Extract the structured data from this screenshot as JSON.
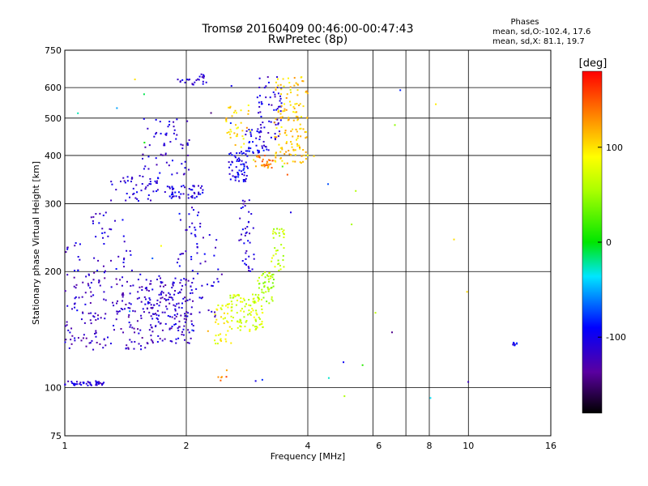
{
  "chart_data": {
    "type": "scatter",
    "title": "Tromsø 20160409 00:46:00-00:47:43",
    "subtitle": "RwPretec (8p)",
    "xlabel": "Frequency [MHz]",
    "ylabel": "Stationary phase Virtual Height [km]",
    "x_scale": "log2",
    "y_scale": "log",
    "xlim": [
      1,
      16
    ],
    "ylim": [
      75,
      750
    ],
    "x_ticks": [
      1,
      2,
      4,
      6,
      8,
      10,
      16
    ],
    "y_ticks": [
      75,
      100,
      200,
      300,
      400,
      500,
      600,
      750
    ],
    "x_grid": [
      2,
      4,
      8,
      10
    ],
    "y_grid": [
      100,
      200,
      300,
      400,
      500,
      600
    ],
    "x_minor_grid": [
      5.8,
      7.0
    ],
    "grid": true,
    "phases_box": {
      "title": "Phases",
      "line_o": "mean, sd,O:-102.4, 17.6",
      "line_x": "mean, sd,X:  81.1, 19.7"
    },
    "colorbar": {
      "label": "[deg]",
      "range": [
        -180,
        180
      ],
      "ticks": [
        100,
        0,
        -100
      ],
      "colormap": "rainbow (black-purple-blue-cyan-green-yellow-orange-red)"
    },
    "series": [
      {
        "clusters": [
          {
            "x": [
              1.0,
              1.25
            ],
            "y": [
              101,
              104
            ],
            "phase": -110,
            "n": 45
          },
          {
            "x": [
              1.0,
              1.6
            ],
            "y": [
              125,
              200
            ],
            "phase": -120,
            "n": 180
          },
          {
            "x": [
              1.6,
              2.1
            ],
            "y": [
              130,
              195
            ],
            "phase": -115,
            "n": 180
          },
          {
            "x": [
              1.0,
              1.5
            ],
            "y": [
              200,
              240
            ],
            "phase": -110,
            "n": 30
          },
          {
            "x": [
              1.15,
              1.4
            ],
            "y": [
              240,
              285
            ],
            "phase": -110,
            "n": 20
          },
          {
            "x": [
              1.3,
              1.8
            ],
            "y": [
              305,
              355
            ],
            "phase": -110,
            "n": 50
          },
          {
            "x": [
              1.8,
              2.2
            ],
            "y": [
              310,
              335
            ],
            "phase": -105,
            "n": 50
          },
          {
            "x": [
              1.55,
              2.05
            ],
            "y": [
              355,
              500
            ],
            "phase": -110,
            "n": 60
          },
          {
            "x": [
              1.9,
              2.25
            ],
            "y": [
              610,
              650
            ],
            "phase": -110,
            "n": 25
          },
          {
            "x": [
              1.9,
              2.2
            ],
            "y": [
              200,
              300
            ],
            "phase": -105,
            "n": 30
          },
          {
            "x": [
              2.1,
              2.45
            ],
            "y": [
              150,
              250
            ],
            "phase": -110,
            "n": 30
          },
          {
            "x": [
              2.35,
              2.6
            ],
            "y": [
              130,
              165
            ],
            "phase": 85,
            "n": 40
          },
          {
            "x": [
              2.55,
              3.1
            ],
            "y": [
              140,
              175
            ],
            "phase": 70,
            "n": 100
          },
          {
            "x": [
              3.0,
              3.3
            ],
            "y": [
              165,
              200
            ],
            "phase": 55,
            "n": 45
          },
          {
            "x": [
              3.25,
              3.5
            ],
            "y": [
              200,
              260
            ],
            "phase": 65,
            "n": 35
          },
          {
            "x": [
              2.7,
              2.95
            ],
            "y": [
              200,
              310
            ],
            "phase": -110,
            "n": 40
          },
          {
            "x": [
              2.55,
              2.85
            ],
            "y": [
              340,
              410
            ],
            "phase": -100,
            "n": 60
          },
          {
            "x": [
              2.8,
              3.2
            ],
            "y": [
              400,
              470
            ],
            "phase": -100,
            "n": 40
          },
          {
            "x": [
              2.5,
              2.9
            ],
            "y": [
              420,
              540
            ],
            "phase": 100,
            "n": 35
          },
          {
            "x": [
              3.0,
              3.45
            ],
            "y": [
              440,
              640
            ],
            "phase": -110,
            "n": 60
          },
          {
            "x": [
              2.95,
              3.3
            ],
            "y": [
              370,
              400
            ],
            "phase": 135,
            "n": 30
          },
          {
            "x": [
              3.3,
              4.0
            ],
            "y": [
              380,
              640
            ],
            "phase": 110,
            "n": 140
          },
          {
            "x": [
              2.4,
              2.55
            ],
            "y": [
              97,
              112
            ],
            "phase": 140,
            "n": 6
          },
          {
            "x": [
              12.8,
              13.2
            ],
            "y": [
              128,
              132
            ],
            "phase": -95,
            "n": 8
          },
          {
            "x": [
              1.0,
              10.0
            ],
            "y": [
              90,
              640
            ],
            "phase": 0,
            "n": 40
          }
        ]
      }
    ]
  }
}
